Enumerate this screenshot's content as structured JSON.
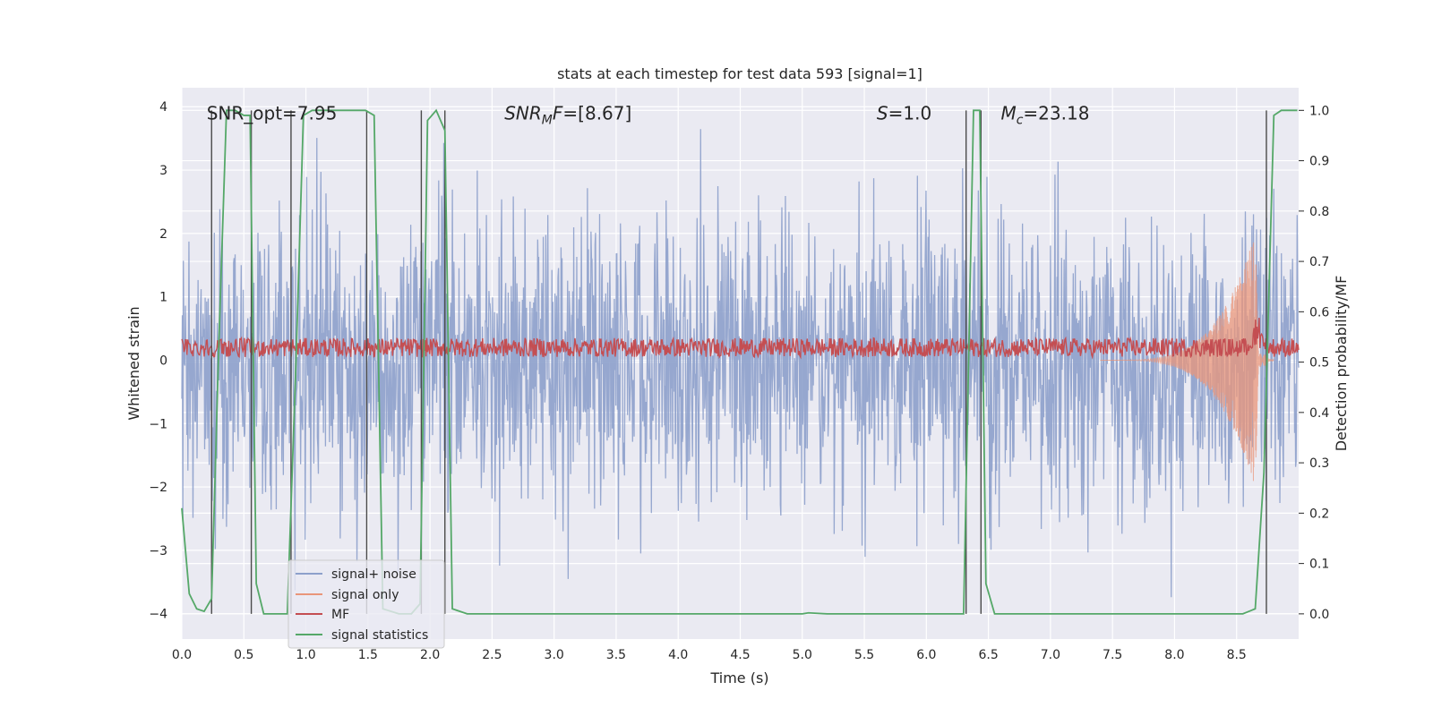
{
  "chart_data": {
    "type": "line",
    "title": "stats at each timestep for test data 593 [signal=1]",
    "xlabel": "Time (s)",
    "ylabel": "Whitened strain",
    "ylabel_right": "Detection probability/MF",
    "xlim": [
      0.0,
      9.0
    ],
    "ylim": [
      -4.4,
      4.3
    ],
    "ylim_right": [
      -0.05,
      1.045
    ],
    "xticks": [
      "0.0",
      "0.5",
      "1.0",
      "1.5",
      "2.0",
      "2.5",
      "3.0",
      "3.5",
      "4.0",
      "4.5",
      "5.0",
      "5.5",
      "6.0",
      "6.5",
      "7.0",
      "7.5",
      "8.0",
      "8.5"
    ],
    "yticks": [
      "−4",
      "−3",
      "−2",
      "−1",
      "0",
      "1",
      "2",
      "3",
      "4"
    ],
    "yticks_right": [
      "0.0",
      "0.1",
      "0.2",
      "0.3",
      "0.4",
      "0.5",
      "0.6",
      "0.7",
      "0.8",
      "0.9",
      "1.0"
    ],
    "grid": true,
    "legend_position": "lower-left",
    "annotations": [
      {
        "id": "snr-opt",
        "text": "SNR_opt=7.95",
        "x": 0.2,
        "y": 3.9
      },
      {
        "id": "snr-mf",
        "text": "SNR_MF=[8.67]",
        "x": 2.6,
        "y": 3.9
      },
      {
        "id": "s",
        "text": "S=1.0",
        "x": 5.6,
        "y": 3.9
      },
      {
        "id": "mc",
        "text": "M_c=23.18",
        "x": 6.6,
        "y": 3.9
      }
    ],
    "series": [
      {
        "name": "signal+ noise",
        "color": "#8da0cb",
        "style": "dense noise",
        "x_range": [
          0.0,
          9.0
        ],
        "typical_amplitude": 2.3,
        "peak_amplitude": 4.0
      },
      {
        "name": "signal only",
        "color": "#e9967a",
        "style": "chirp",
        "x_range": [
          7.4,
          8.8
        ],
        "peak_time": 8.65,
        "peak_amplitude": 2.0
      },
      {
        "name": "MF",
        "color": "#c44e52",
        "style": "noisy band",
        "x_range": [
          0.0,
          9.0
        ],
        "mean": 0.2,
        "spread": 0.15
      },
      {
        "name": "signal statistics",
        "color": "#55a868",
        "axis": "right",
        "x": [
          0.0,
          0.06,
          0.12,
          0.18,
          0.24,
          0.3,
          0.36,
          0.43,
          0.5,
          0.55,
          0.6,
          0.66,
          0.75,
          0.85,
          0.92,
          0.98,
          1.05,
          1.2,
          1.48,
          1.55,
          1.62,
          1.75,
          1.85,
          1.92,
          1.98,
          2.05,
          2.12,
          2.18,
          2.3,
          5.0,
          5.05,
          5.2,
          6.3,
          6.38,
          6.43,
          6.48,
          6.55,
          6.65,
          8.55,
          8.65,
          8.72,
          8.8,
          8.86,
          8.92,
          8.99
        ],
        "y": [
          0.21,
          0.04,
          0.01,
          0.005,
          0.03,
          0.55,
          1.0,
          1.0,
          0.99,
          0.99,
          0.06,
          0.0,
          0.0,
          0.0,
          0.5,
          0.99,
          1.0,
          1.0,
          1.0,
          0.99,
          0.01,
          0.0,
          0.0,
          0.02,
          0.98,
          1.0,
          0.96,
          0.01,
          0.0,
          0.0,
          0.002,
          0.0,
          0.0,
          1.0,
          1.0,
          0.06,
          0.0,
          0.0,
          0.0,
          0.01,
          0.28,
          0.99,
          1.0,
          1.0,
          1.0
        ]
      }
    ],
    "vlines_x": [
      0.24,
      0.56,
      0.88,
      1.49,
      1.93,
      2.12,
      6.32,
      6.44,
      8.74
    ]
  }
}
